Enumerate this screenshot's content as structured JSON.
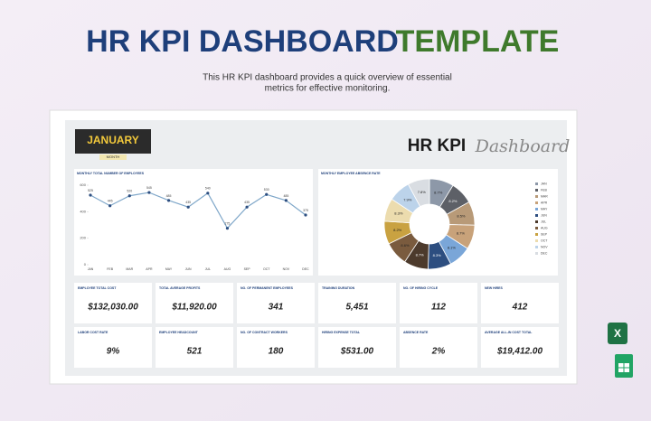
{
  "header": {
    "title_left": "HR KPI DASHBOARD",
    "title_right": "TEMPLATE",
    "subtitle_lines": [
      "This HR KPI dashboard provides a quick overview of essential",
      "metrics for effective monitoring."
    ]
  },
  "dashboard": {
    "month": "JANUARY",
    "month_caption": "MONTH",
    "brand": "HR KPI",
    "brand_script": "Dashboard",
    "cards": [
      {
        "label": "EMPLOYEE TOTAL COST",
        "value": "$132,030.00"
      },
      {
        "label": "TOTAL AVERAGE PROFITS",
        "value": "$11,920.00"
      },
      {
        "label": "NO. OF PERMANENT EMPLOYEES",
        "value": "341"
      },
      {
        "label": "TRAINING DURATION",
        "value": "5,451"
      },
      {
        "label": "NO. OF HIRING CYCLE",
        "value": "112"
      },
      {
        "label": "NEW HIRES",
        "value": "412"
      },
      {
        "label": "LABOR COST RATE",
        "value": "9%"
      },
      {
        "label": "EMPLOYEE HEADCOUNT",
        "value": "521"
      },
      {
        "label": "NO. OF CONTRACT WORKERS",
        "value": "180"
      },
      {
        "label": "HIRING EXPENSE TOTAL",
        "value": "$531.00"
      },
      {
        "label": "ABSENCE RATE",
        "value": "2%"
      },
      {
        "label": "AVERAGE ALL-IN COST TOTAL",
        "value": "$19,412.00"
      }
    ]
  },
  "chart_data": [
    {
      "type": "line",
      "title": "MONTHLY TOTAL NUMBER OF EMPLOYEES",
      "categories": [
        "JAN",
        "FEB",
        "MAR",
        "APR",
        "MAY",
        "JUN",
        "JUL",
        "AUG",
        "SEP",
        "OCT",
        "NOV",
        "DEC"
      ],
      "values": [
        525,
        445,
        520,
        545,
        485,
        435,
        540,
        275,
        435,
        530,
        485,
        375
      ],
      "color": "#7fa7c9",
      "ylim": [
        0,
        600
      ],
      "yticks": [
        0,
        200,
        400,
        600
      ]
    },
    {
      "type": "pie",
      "title": "MONTHLY EMPLOYEE ABSENCE RATE",
      "categories": [
        "JAN",
        "FEB",
        "MAR",
        "APR",
        "MAY",
        "JUN",
        "JUL",
        "AUG",
        "SEP",
        "OCT",
        "NOV",
        "DEC"
      ],
      "values": [
        8.7,
        8.2,
        8.5,
        8.7,
        8.1,
        8.3,
        8.7,
        8.6,
        8.2,
        8.3,
        7.9,
        7.8
      ],
      "value_labels": [
        "8.7%",
        "8.2%",
        "8.5%",
        "8.7%",
        "8.1%",
        "8.3%",
        "8.7%",
        "8.6%",
        "8.2%",
        "8.3%",
        "7.9%",
        "7.8%"
      ],
      "colors": [
        "#8d98a8",
        "#5d6067",
        "#b89a78",
        "#c8a27a",
        "#7aa6d8",
        "#2d4e80",
        "#4c3a2c",
        "#7a5b3e",
        "#c9a241",
        "#ecdcae",
        "#bcd3ea",
        "#d9dde2"
      ]
    }
  ]
}
